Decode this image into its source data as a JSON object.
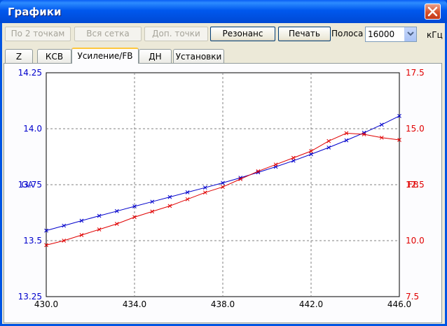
{
  "window": {
    "title": "Графики"
  },
  "toolbar": {
    "buttons": [
      {
        "label": "По 2 точкам",
        "enabled": false
      },
      {
        "label": "Вся сетка",
        "enabled": false
      },
      {
        "label": "Доп. точки",
        "enabled": false
      },
      {
        "label": "Резонанс",
        "enabled": true
      },
      {
        "label": "Печать",
        "enabled": true
      }
    ],
    "band_label": "Полоса",
    "band_value": "16000",
    "band_unit": "кГц"
  },
  "tabs": [
    {
      "label": "Z",
      "active": false
    },
    {
      "label": "КСВ",
      "active": false
    },
    {
      "label": "Усиление/FB",
      "active": true
    },
    {
      "label": "ДН",
      "active": false
    },
    {
      "label": "Установки",
      "active": false
    }
  ],
  "colors": {
    "ga": "#0000cc",
    "fb": "#e00000",
    "grid": "#808080"
  },
  "chart_data": {
    "type": "line",
    "xlabel": "",
    "xlim": [
      430.0,
      446.0
    ],
    "xticks": [
      "430.0",
      "434.0",
      "438.0",
      "442.0",
      "446.0"
    ],
    "y_left": {
      "label": "GA",
      "lim": [
        13.25,
        14.25
      ],
      "ticks": [
        "13.25",
        "13.5",
        "13.75",
        "14.0",
        "14.25"
      ]
    },
    "y_right": {
      "label": "FB",
      "lim": [
        7.5,
        17.5
      ],
      "ticks": [
        "7.5",
        "10.0",
        "12.5",
        "15.0",
        "17.5"
      ]
    },
    "series": [
      {
        "name": "GA",
        "axis": "left",
        "x": [
          430.0,
          430.8,
          431.6,
          432.4,
          433.2,
          434.0,
          434.8,
          435.6,
          436.4,
          437.2,
          438.0,
          438.8,
          439.6,
          440.4,
          441.2,
          442.0,
          442.8,
          443.6,
          444.4,
          445.2,
          446.0
        ],
        "y": [
          13.545,
          13.567,
          13.589,
          13.611,
          13.632,
          13.653,
          13.674,
          13.695,
          13.716,
          13.737,
          13.758,
          13.781,
          13.805,
          13.83,
          13.857,
          13.886,
          13.916,
          13.948,
          13.982,
          14.018,
          14.057
        ]
      },
      {
        "name": "FB",
        "axis": "right",
        "x": [
          430.0,
          430.8,
          431.6,
          432.4,
          433.2,
          434.0,
          434.8,
          435.6,
          436.4,
          437.2,
          438.0,
          438.8,
          439.6,
          440.4,
          441.2,
          442.0,
          442.8,
          443.6,
          444.4,
          445.2,
          446.0
        ],
        "y": [
          9.8,
          10.0,
          10.25,
          10.5,
          10.75,
          11.05,
          11.3,
          11.55,
          11.85,
          12.15,
          12.4,
          12.75,
          13.1,
          13.4,
          13.7,
          14.0,
          14.45,
          14.8,
          14.75,
          14.6,
          14.5
        ]
      }
    ]
  }
}
